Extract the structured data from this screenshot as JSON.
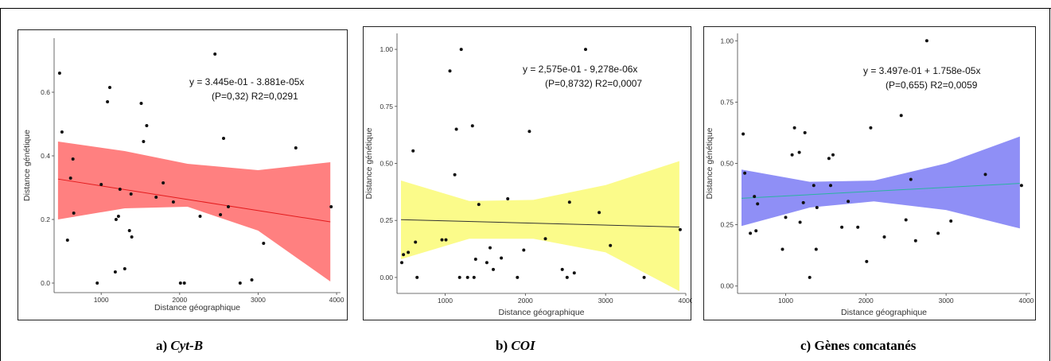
{
  "colors": {
    "red_band": "#ff8080",
    "yellow_band": "#fbfb8a",
    "blue_band": "#8f8ff6",
    "red_line": "#e31a1c",
    "black_line": "#333333",
    "teal_line": "#2bb3a0"
  },
  "captions": [
    {
      "prefix": "a)",
      "label": "Cyt-B",
      "italic": true
    },
    {
      "prefix": "b)",
      "label": "COI",
      "italic": true
    },
    {
      "prefix": "c)",
      "label": "Gènes concatanés",
      "italic": false
    }
  ],
  "chart_data": [
    {
      "type": "scatter",
      "xlabel": "Distance géographique",
      "ylabel": "Distance génétique",
      "xlim": [
        400,
        4050
      ],
      "ylim": [
        -0.03,
        0.77
      ],
      "xticks": [
        1000,
        2000,
        3000,
        4000
      ],
      "xtick_labels": [
        "1000",
        "2000",
        "3000",
        "4000"
      ],
      "yticks": [
        0.0,
        0.2,
        0.4,
        0.6
      ],
      "ytick_labels": [
        "0.0",
        "0.2",
        "0.4",
        "0.6"
      ],
      "equation_line1": "y = 3.445e-01 - 3.881e-05x",
      "equation_line2": "(P=0,32) R2=0,0291",
      "fit": {
        "intercept": 0.3445,
        "slope": -3.881e-05,
        "x_range": [
          450,
          3920
        ],
        "band_upper": [
          0.445,
          0.415,
          0.375,
          0.355,
          0.38
        ],
        "band_lower": [
          0.2,
          0.235,
          0.24,
          0.165,
          0.005
        ],
        "band_x": [
          450,
          1300,
          2100,
          3000,
          3920
        ]
      },
      "band_color": "red_band",
      "line_color": "red_line",
      "points": [
        [
          470,
          0.66
        ],
        [
          500,
          0.475
        ],
        [
          570,
          0.135
        ],
        [
          610,
          0.33
        ],
        [
          640,
          0.39
        ],
        [
          650,
          0.22
        ],
        [
          950,
          0.0
        ],
        [
          1000,
          0.31
        ],
        [
          1080,
          0.57
        ],
        [
          1110,
          0.615
        ],
        [
          1180,
          0.035
        ],
        [
          1190,
          0.2
        ],
        [
          1220,
          0.21
        ],
        [
          1240,
          0.295
        ],
        [
          1300,
          0.045
        ],
        [
          1360,
          0.165
        ],
        [
          1380,
          0.28
        ],
        [
          1390,
          0.145
        ],
        [
          1510,
          0.565
        ],
        [
          1540,
          0.445
        ],
        [
          1580,
          0.495
        ],
        [
          1700,
          0.27
        ],
        [
          1790,
          0.315
        ],
        [
          1920,
          0.255
        ],
        [
          2010,
          0.0
        ],
        [
          2060,
          0.0
        ],
        [
          2260,
          0.21
        ],
        [
          2450,
          0.72
        ],
        [
          2520,
          0.215
        ],
        [
          2560,
          0.455
        ],
        [
          2620,
          0.24
        ],
        [
          2770,
          0.0
        ],
        [
          2920,
          0.01
        ],
        [
          3070,
          0.125
        ],
        [
          3480,
          0.425
        ],
        [
          3930,
          0.24
        ]
      ]
    },
    {
      "type": "scatter",
      "xlabel": "Distance géographique",
      "ylabel": "Distance génétique",
      "xlim": [
        400,
        4000
      ],
      "ylim": [
        -0.07,
        1.07
      ],
      "xticks": [
        1000,
        2000,
        3000,
        4000
      ],
      "xtick_labels": [
        "1000",
        "2000",
        "3000",
        "4000"
      ],
      "yticks": [
        0.0,
        0.25,
        0.5,
        0.75,
        1.0
      ],
      "ytick_labels": [
        "0.00",
        "0.25",
        "0.50",
        "0.75",
        "1.00"
      ],
      "equation_line1": "y = 2,575e-01 - 9,278e-06x",
      "equation_line2": "(P=0,8732) R2=0,0007",
      "fit": {
        "intercept": 0.2575,
        "slope": -9.278e-06,
        "x_range": [
          450,
          3920
        ],
        "band_upper": [
          0.425,
          0.335,
          0.34,
          0.405,
          0.51
        ],
        "band_lower": [
          0.08,
          0.17,
          0.17,
          0.11,
          -0.06
        ],
        "band_x": [
          450,
          1300,
          2100,
          3000,
          3920
        ]
      },
      "band_color": "yellow_band",
      "line_color": "black_line",
      "points": [
        [
          460,
          0.065
        ],
        [
          480,
          0.1
        ],
        [
          540,
          0.11
        ],
        [
          600,
          0.555
        ],
        [
          630,
          0.155
        ],
        [
          650,
          0.0
        ],
        [
          960,
          0.165
        ],
        [
          1010,
          0.165
        ],
        [
          1060,
          0.905
        ],
        [
          1120,
          0.45
        ],
        [
          1140,
          0.65
        ],
        [
          1180,
          0.0
        ],
        [
          1200,
          1.0
        ],
        [
          1280,
          0.0
        ],
        [
          1340,
          0.665
        ],
        [
          1360,
          0.0
        ],
        [
          1380,
          0.08
        ],
        [
          1420,
          0.32
        ],
        [
          1520,
          0.065
        ],
        [
          1560,
          0.13
        ],
        [
          1600,
          0.035
        ],
        [
          1700,
          0.085
        ],
        [
          1780,
          0.345
        ],
        [
          1900,
          0.0
        ],
        [
          1980,
          0.12
        ],
        [
          2050,
          0.64
        ],
        [
          2250,
          0.17
        ],
        [
          2460,
          0.035
        ],
        [
          2520,
          0.0
        ],
        [
          2550,
          0.33
        ],
        [
          2610,
          0.02
        ],
        [
          2750,
          1.0
        ],
        [
          2920,
          0.285
        ],
        [
          3060,
          0.14
        ],
        [
          3480,
          0.0
        ],
        [
          3930,
          0.21
        ]
      ]
    },
    {
      "type": "scatter",
      "xlabel": "Distance géographique",
      "ylabel": "Distance génétique",
      "xlim": [
        400,
        4050
      ],
      "ylim": [
        -0.03,
        1.03
      ],
      "xticks": [
        1000,
        2000,
        3000,
        4000
      ],
      "xtick_labels": [
        "1000",
        "2000",
        "3000",
        "4000"
      ],
      "yticks": [
        0.0,
        0.25,
        0.5,
        0.75,
        1.0
      ],
      "ytick_labels": [
        "0.00",
        "0.25",
        "0.50",
        "0.75",
        "1.00"
      ],
      "equation_line1": "y =  3.497e-01 + 1.758e-05x",
      "equation_line2": "(P=0,655) R2=0,0059",
      "fit": {
        "intercept": 0.3497,
        "slope": 1.758e-05,
        "x_range": [
          450,
          3920
        ],
        "band_upper": [
          0.475,
          0.425,
          0.43,
          0.5,
          0.61
        ],
        "band_lower": [
          0.245,
          0.32,
          0.345,
          0.31,
          0.235
        ],
        "band_x": [
          450,
          1300,
          2100,
          3000,
          3920
        ]
      },
      "band_color": "blue_band",
      "line_color": "teal_line",
      "points": [
        [
          470,
          0.62
        ],
        [
          490,
          0.46
        ],
        [
          560,
          0.215
        ],
        [
          610,
          0.365
        ],
        [
          630,
          0.225
        ],
        [
          650,
          0.335
        ],
        [
          960,
          0.15
        ],
        [
          1000,
          0.28
        ],
        [
          1080,
          0.535
        ],
        [
          1110,
          0.645
        ],
        [
          1170,
          0.545
        ],
        [
          1180,
          0.26
        ],
        [
          1220,
          0.34
        ],
        [
          1240,
          0.625
        ],
        [
          1300,
          0.035
        ],
        [
          1350,
          0.41
        ],
        [
          1380,
          0.15
        ],
        [
          1390,
          0.32
        ],
        [
          1540,
          0.52
        ],
        [
          1560,
          0.41
        ],
        [
          1590,
          0.535
        ],
        [
          1700,
          0.24
        ],
        [
          1780,
          0.345
        ],
        [
          1900,
          0.24
        ],
        [
          2010,
          0.1
        ],
        [
          2060,
          0.645
        ],
        [
          2230,
          0.2
        ],
        [
          2440,
          0.695
        ],
        [
          2500,
          0.27
        ],
        [
          2560,
          0.435
        ],
        [
          2620,
          0.185
        ],
        [
          2760,
          1.0
        ],
        [
          2900,
          0.215
        ],
        [
          3060,
          0.265
        ],
        [
          3490,
          0.455
        ],
        [
          3940,
          0.41
        ]
      ]
    }
  ]
}
